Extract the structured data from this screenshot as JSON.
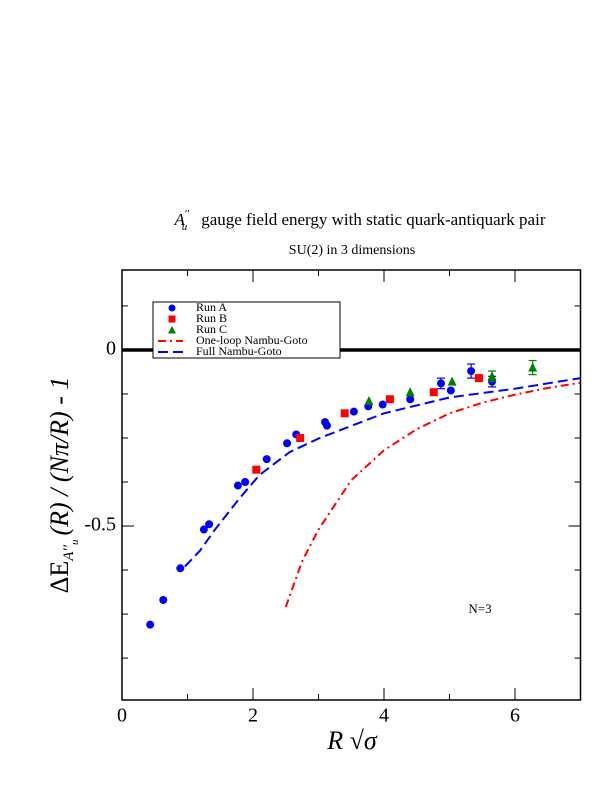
{
  "chart_data": {
    "type": "scatter",
    "title_symbol": "A",
    "title_symbol_sup": "′′",
    "title_symbol_sub": "u",
    "title": "gauge field energy with static quark-antiquark pair",
    "subtitle": "SU(2) in 3 dimensions",
    "x_label": "R √σ",
    "y_label": "ΔE",
    "y_label_sub": "A′′",
    "y_label_subsub": "u",
    "y_label_rest": "(R) / (Nπ/R) - 1",
    "annotation": "N=3",
    "xlim": [
      0,
      7
    ],
    "ylim": [
      -0.994,
      0.227
    ],
    "xticks": [
      0,
      2,
      4,
      6
    ],
    "yticks": [
      0,
      -0.5
    ],
    "x_minor_step": 1,
    "y_minor_step": 0.125,
    "reference_line": 0,
    "legend": "upper left",
    "series": [
      {
        "name": "Run A",
        "color": "#0000ff",
        "marker": "circle",
        "x": [
          0.43,
          0.63,
          0.89,
          1.25,
          1.33,
          1.77,
          1.88,
          2.21,
          2.52,
          2.66,
          3.1,
          3.13,
          3.54,
          3.76,
          3.98,
          4.4,
          4.87,
          5.02,
          5.33,
          5.65
        ],
        "values": [
          -0.78,
          -0.71,
          -0.62,
          -0.51,
          -0.495,
          -0.385,
          -0.375,
          -0.31,
          -0.265,
          -0.24,
          -0.205,
          -0.215,
          -0.175,
          -0.16,
          -0.155,
          -0.14,
          -0.095,
          -0.115,
          -0.06,
          -0.09
        ],
        "errors": [
          null,
          null,
          null,
          null,
          null,
          null,
          null,
          null,
          null,
          null,
          null,
          null,
          null,
          null,
          null,
          null,
          0.015,
          null,
          0.02,
          0.015
        ]
      },
      {
        "name": "Run B",
        "color": "#ff0000",
        "marker": "square",
        "x": [
          2.05,
          2.72,
          3.4,
          4.09,
          4.76,
          5.45
        ],
        "values": [
          -0.34,
          -0.25,
          -0.18,
          -0.14,
          -0.12,
          -0.08
        ],
        "errors": [
          null,
          null,
          null,
          null,
          null,
          null
        ]
      },
      {
        "name": "Run C",
        "color": "#008000",
        "marker": "triangle",
        "x": [
          3.77,
          4.4,
          5.04,
          5.65,
          6.27
        ],
        "values": [
          -0.145,
          -0.12,
          -0.09,
          -0.075,
          -0.05
        ],
        "errors": [
          null,
          null,
          null,
          0.015,
          0.02
        ]
      },
      {
        "name": "One-loop Nambu-Goto",
        "color": "#ff0000",
        "line": "dashdot",
        "x": [
          2.5,
          2.75,
          3,
          3.5,
          4,
          4.5,
          5,
          5.5,
          6,
          6.5,
          7
        ],
        "values": [
          -0.73,
          -0.6,
          -0.51,
          -0.37,
          -0.285,
          -0.225,
          -0.18,
          -0.15,
          -0.127,
          -0.108,
          -0.093
        ]
      },
      {
        "name": "Full Nambu-Goto",
        "color": "#0000ff",
        "line": "dashed",
        "x": [
          0.96,
          1.19,
          1.42,
          1.8,
          2.1,
          2.56,
          3.02,
          4,
          5,
          6,
          7
        ],
        "values": [
          -0.615,
          -0.57,
          -0.51,
          -0.42,
          -0.355,
          -0.29,
          -0.25,
          -0.18,
          -0.135,
          -0.11,
          -0.08
        ]
      }
    ]
  }
}
